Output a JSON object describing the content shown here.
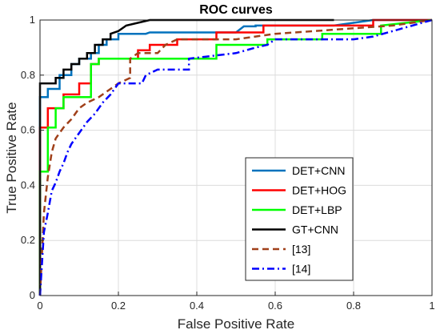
{
  "chart_data": {
    "type": "line",
    "title": "ROC curves",
    "xlabel": "False Positive Rate",
    "ylabel": "True Positive Rate",
    "xlim": [
      0,
      1
    ],
    "ylim": [
      0,
      1
    ],
    "x_ticks": [
      "0",
      "0.2",
      "0.4",
      "0.6",
      "0.8",
      "1"
    ],
    "y_ticks": [
      "0",
      "0.2",
      "0.4",
      "0.6",
      "0.8",
      "1"
    ],
    "grid": true,
    "legend_position": "lower-right",
    "series": [
      {
        "name": "DET+CNN",
        "color": "#0072BD",
        "style": "solid",
        "x": [
          0,
          0,
          0,
          0.02,
          0.02,
          0.05,
          0.05,
          0.08,
          0.08,
          0.1,
          0.1,
          0.13,
          0.13,
          0.15,
          0.15,
          0.17,
          0.17,
          0.2,
          0.2,
          0.27,
          0.28,
          0.5,
          0.52,
          0.55,
          0.55,
          0.75,
          0.85,
          1
        ],
        "y": [
          0,
          0.5,
          0.72,
          0.72,
          0.75,
          0.75,
          0.8,
          0.8,
          0.84,
          0.84,
          0.86,
          0.86,
          0.88,
          0.88,
          0.91,
          0.91,
          0.93,
          0.93,
          0.95,
          0.95,
          0.955,
          0.955,
          0.977,
          0.977,
          0.98,
          0.98,
          1,
          1
        ]
      },
      {
        "name": "DET+HOG",
        "color": "#FF0000",
        "style": "solid",
        "x": [
          0,
          0,
          0,
          0.02,
          0.02,
          0.06,
          0.06,
          0.1,
          0.1,
          0.13,
          0.13,
          0.15,
          0.15,
          0.17,
          0.17,
          0.25,
          0.25,
          0.28,
          0.28,
          0.35,
          0.35,
          0.45,
          0.45,
          0.57,
          0.57,
          0.85,
          0.85,
          1
        ],
        "y": [
          0,
          0.43,
          0.61,
          0.61,
          0.68,
          0.68,
          0.73,
          0.73,
          0.77,
          0.77,
          0.84,
          0.84,
          0.86,
          0.86,
          0.86,
          0.86,
          0.89,
          0.89,
          0.91,
          0.91,
          0.93,
          0.93,
          0.955,
          0.955,
          0.98,
          0.98,
          1,
          1
        ]
      },
      {
        "name": "DET+LBP",
        "color": "#00FF00",
        "style": "solid",
        "x": [
          0,
          0,
          0.02,
          0.02,
          0.04,
          0.04,
          0.06,
          0.06,
          0.13,
          0.13,
          0.15,
          0.15,
          0.45,
          0.45,
          0.58,
          0.58,
          0.72,
          0.72,
          0.87,
          0.87,
          1
        ],
        "y": [
          0,
          0.45,
          0.45,
          0.61,
          0.61,
          0.68,
          0.68,
          0.72,
          0.72,
          0.84,
          0.84,
          0.86,
          0.86,
          0.91,
          0.91,
          0.93,
          0.93,
          0.95,
          0.95,
          0.98,
          1
        ]
      },
      {
        "name": "GT+CNN",
        "color": "#000000",
        "style": "solid",
        "x": [
          0,
          0,
          0,
          0.04,
          0.04,
          0.06,
          0.06,
          0.08,
          0.08,
          0.1,
          0.1,
          0.12,
          0.12,
          0.14,
          0.14,
          0.16,
          0.16,
          0.18,
          0.18,
          0.2,
          0.22,
          0.28,
          0.75
        ],
        "y": [
          0,
          0.26,
          0.77,
          0.77,
          0.79,
          0.79,
          0.82,
          0.82,
          0.84,
          0.84,
          0.86,
          0.86,
          0.88,
          0.88,
          0.91,
          0.91,
          0.93,
          0.93,
          0.95,
          0.96,
          0.98,
          1,
          1
        ]
      },
      {
        "name": "[13]",
        "color": "#A0401A",
        "style": "dashed",
        "x": [
          0,
          0.01,
          0.02,
          0.03,
          0.04,
          0.05,
          0.06,
          0.08,
          0.1,
          0.12,
          0.15,
          0.18,
          0.2,
          0.23,
          0.23,
          0.25,
          0.3,
          0.32,
          0.35,
          0.4,
          0.45,
          0.5,
          0.55,
          0.6,
          0.7,
          0.8,
          0.9,
          1
        ],
        "y": [
          0,
          0.3,
          0.43,
          0.52,
          0.57,
          0.59,
          0.61,
          0.64,
          0.68,
          0.7,
          0.72,
          0.75,
          0.77,
          0.79,
          0.86,
          0.88,
          0.88,
          0.91,
          0.93,
          0.93,
          0.93,
          0.93,
          0.94,
          0.95,
          0.96,
          0.97,
          0.98,
          1
        ]
      },
      {
        "name": "[14]",
        "color": "#0000FF",
        "style": "dashdot",
        "x": [
          0,
          0.01,
          0.02,
          0.03,
          0.04,
          0.05,
          0.06,
          0.07,
          0.08,
          0.1,
          0.12,
          0.14,
          0.16,
          0.18,
          0.2,
          0.22,
          0.26,
          0.27,
          0.3,
          0.38,
          0.38,
          0.5,
          0.55,
          0.58,
          0.6,
          0.7,
          0.8,
          0.85,
          0.9,
          1
        ],
        "y": [
          0,
          0.23,
          0.3,
          0.38,
          0.41,
          0.45,
          0.48,
          0.52,
          0.55,
          0.59,
          0.63,
          0.66,
          0.7,
          0.73,
          0.77,
          0.77,
          0.77,
          0.8,
          0.82,
          0.82,
          0.86,
          0.88,
          0.9,
          0.91,
          0.93,
          0.93,
          0.93,
          0.94,
          0.96,
          1
        ]
      }
    ]
  }
}
